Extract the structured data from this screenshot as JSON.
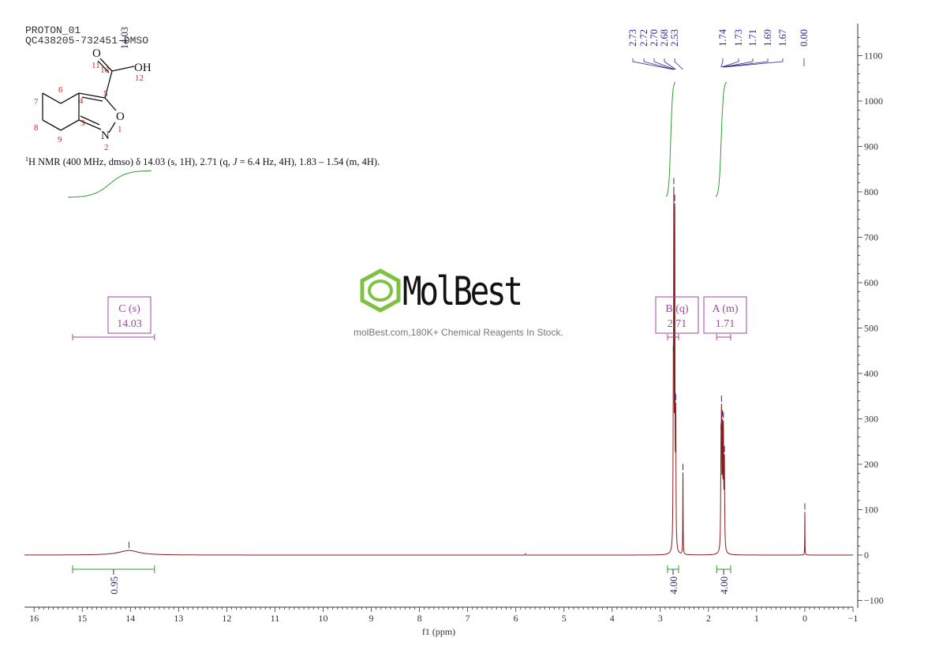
{
  "header": {
    "line1": "PROTON_01",
    "line2": "QC438205-732451-DMSO"
  },
  "summary": {
    "prefix": "H NMR (400 MHz, dmso) δ 14.03 (s, 1H), 2.71 (q, ",
    "j_symbol": "J",
    "suffix": " = 6.4 Hz, 4H), 1.83 – 1.54 (m, 4H).",
    "sup": "1"
  },
  "structure": {
    "atoms": [
      {
        "label": "O",
        "kind": "heteroatom"
      },
      {
        "label": "OH",
        "kind": "heteroatom"
      },
      {
        "label": "O",
        "kind": "heteroatom"
      },
      {
        "label": "N",
        "kind": "heteroatom"
      }
    ],
    "numbers": [
      "1",
      "2",
      "3",
      "4",
      "5",
      "6",
      "7",
      "8",
      "9",
      "10",
      "11",
      "12"
    ]
  },
  "watermark": {
    "brand": "MolBest",
    "tagline": "molBest.com,180K+ Chemical Reagents In Stock."
  },
  "colors": {
    "spectrum": "#8b1a1a",
    "integral": "#2e9e2e",
    "multiplet": "#9b4a9b",
    "peak_label": "#2a2a8a",
    "axis": "#333333",
    "logo": "#7dc242"
  },
  "chart_data": {
    "type": "line",
    "title": "",
    "xlabel": "f1 (ppm)",
    "ylabel": "",
    "xlim": [
      16.2,
      -1.0
    ],
    "ylim": [
      -100,
      1150
    ],
    "x_reversed": true,
    "x_ticks": [
      "16",
      "15",
      "14",
      "13",
      "12",
      "11",
      "10",
      "9",
      "8",
      "7",
      "6",
      "5",
      "4",
      "3",
      "2",
      "1",
      "0",
      "-1"
    ],
    "y_ticks": [
      "-100",
      "0",
      "100",
      "200",
      "300",
      "400",
      "500",
      "600",
      "700",
      "800",
      "900",
      "1000",
      "1100"
    ],
    "y_axis_side": "right",
    "series": [
      {
        "kind": "spectrum",
        "peaks": [
          {
            "ppm": 14.03,
            "height": 10,
            "width": 0.25
          },
          {
            "ppm": 2.73,
            "height": 280,
            "width": 0.006
          },
          {
            "ppm": 2.72,
            "height": 690,
            "width": 0.005
          },
          {
            "ppm": 2.7,
            "height": 700,
            "width": 0.005
          },
          {
            "ppm": 2.68,
            "height": 280,
            "width": 0.006
          },
          {
            "ppm": 2.53,
            "height": 180,
            "width": 0.004
          },
          {
            "ppm": 1.74,
            "height": 190,
            "width": 0.007
          },
          {
            "ppm": 1.73,
            "height": 235,
            "width": 0.006
          },
          {
            "ppm": 1.71,
            "height": 245,
            "width": 0.007
          },
          {
            "ppm": 1.69,
            "height": 240,
            "width": 0.006
          },
          {
            "ppm": 1.67,
            "height": 190,
            "width": 0.007
          },
          {
            "ppm": 0.0,
            "height": 95,
            "width": 0.003
          },
          {
            "ppm": 5.8,
            "height": 3,
            "width": 0.003
          }
        ]
      }
    ],
    "peak_labels": {
      "group1": [
        "2.73",
        "2.72",
        "2.70",
        "2.68",
        "2.53"
      ],
      "group2": [
        "1.74",
        "1.73",
        "1.71",
        "1.69",
        "1.67"
      ],
      "single": [
        "14.03",
        "0.00"
      ]
    },
    "multiplets": [
      {
        "letter": "C",
        "type": "(s)",
        "shift": "14.03",
        "range": [
          15.2,
          13.5
        ]
      },
      {
        "letter": "B",
        "type": "(q)",
        "shift": "2.71",
        "range": [
          2.85,
          2.62
        ]
      },
      {
        "letter": "A",
        "type": "(m)",
        "shift": "1.71",
        "range": [
          1.83,
          1.54
        ]
      }
    ],
    "integrals": [
      {
        "value": "0.95",
        "range": [
          15.2,
          13.5
        ]
      },
      {
        "value": "4.00",
        "range": [
          2.85,
          2.62
        ]
      },
      {
        "value": "4.00",
        "range": [
          1.83,
          1.54
        ]
      }
    ]
  }
}
